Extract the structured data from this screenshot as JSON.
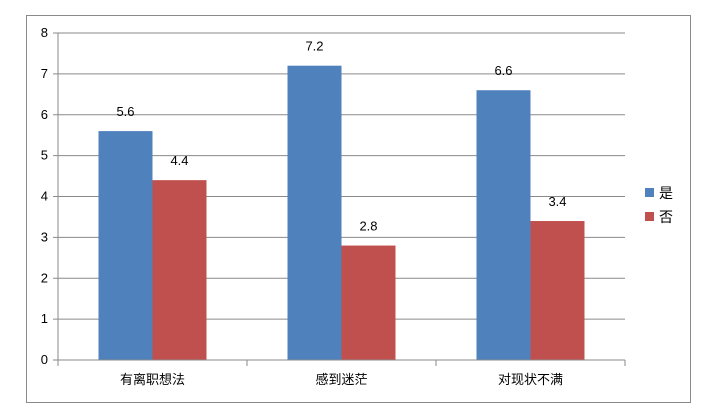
{
  "chart_data": {
    "type": "bar",
    "categories": [
      "有离职想法",
      "感到迷茫",
      "对现状不满"
    ],
    "series": [
      {
        "name": "是",
        "values": [
          5.6,
          7.2,
          6.6
        ],
        "color": "#4f81bd"
      },
      {
        "name": "否",
        "values": [
          4.4,
          2.8,
          3.4
        ],
        "color": "#c0504d"
      }
    ],
    "ylim": [
      0,
      8
    ],
    "yticks": [
      "0",
      "1",
      "2",
      "3",
      "4",
      "5",
      "6",
      "7",
      "8"
    ],
    "data_labels": [
      [
        "5.6",
        "7.2",
        "6.6"
      ],
      [
        "4.4",
        "2.8",
        "3.4"
      ]
    ],
    "grid": true,
    "legend": "right",
    "title": "",
    "xlabel": "",
    "ylabel": ""
  }
}
